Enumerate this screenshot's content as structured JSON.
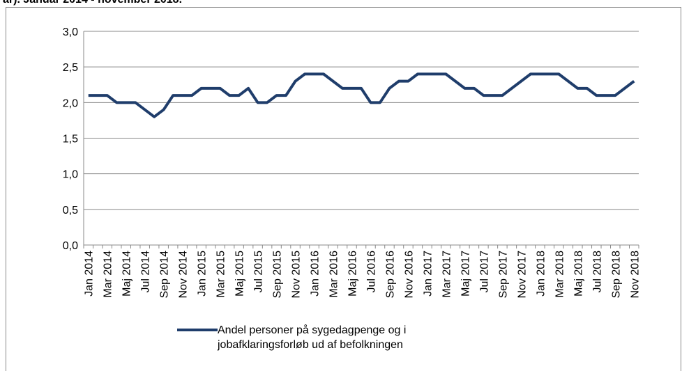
{
  "chart_data": {
    "type": "line",
    "title": "ar). Januar 2014 - november 2018.",
    "categories": [
      "Jan 2014",
      null,
      "Mar 2014",
      null,
      "Maj 2014",
      null,
      "Jul 2014",
      null,
      "Sep 2014",
      null,
      "Nov 2014",
      null,
      "Jan 2015",
      null,
      "Mar 2015",
      null,
      "Maj 2015",
      null,
      "Jul 2015",
      null,
      "Sep 2015",
      null,
      "Nov 2015",
      null,
      "Jan 2016",
      null,
      "Mar 2016",
      null,
      "Maj 2016",
      null,
      "Jul 2016",
      null,
      "Sep 2016",
      null,
      "Nov 2016",
      null,
      "Jan 2017",
      null,
      "Mar 2017",
      null,
      "Maj 2017",
      null,
      "Jul 2017",
      null,
      "Sep 2017",
      null,
      "Nov 2017",
      null,
      "Jan 2018",
      null,
      "Mar 2018",
      null,
      "Maj 2018",
      null,
      "Jul 2018",
      null,
      "Sep 2018",
      null,
      "Nov 2018"
    ],
    "series": [
      {
        "name": "Andel personer på sygedagpenge og i jobafklaringsforløb ud af befolkningen",
        "color": "#1f3d6b",
        "values": [
          2.1,
          2.1,
          2.1,
          2.0,
          2.0,
          2.0,
          1.9,
          1.8,
          1.9,
          2.1,
          2.1,
          2.1,
          2.2,
          2.2,
          2.2,
          2.1,
          2.1,
          2.2,
          2.0,
          2.0,
          2.1,
          2.1,
          2.3,
          2.4,
          2.4,
          2.4,
          2.3,
          2.2,
          2.2,
          2.2,
          2.0,
          2.0,
          2.2,
          2.3,
          2.3,
          2.4,
          2.4,
          2.4,
          2.4,
          2.3,
          2.2,
          2.2,
          2.1,
          2.1,
          2.1,
          2.2,
          2.3,
          2.4,
          2.4,
          2.4,
          2.4,
          2.3,
          2.2,
          2.2,
          2.1,
          2.1,
          2.1,
          2.2,
          2.3
        ]
      }
    ],
    "ylim": [
      0,
      3
    ],
    "yticks": [
      {
        "value": 0,
        "label": "0,0"
      },
      {
        "value": 0.5,
        "label": "0,5"
      },
      {
        "value": 1,
        "label": "1,0"
      },
      {
        "value": 1.5,
        "label": "1,5"
      },
      {
        "value": 2,
        "label": "2,0"
      },
      {
        "value": 2.5,
        "label": "2,5"
      },
      {
        "value": 3,
        "label": "3,0"
      }
    ],
    "grid": true
  }
}
